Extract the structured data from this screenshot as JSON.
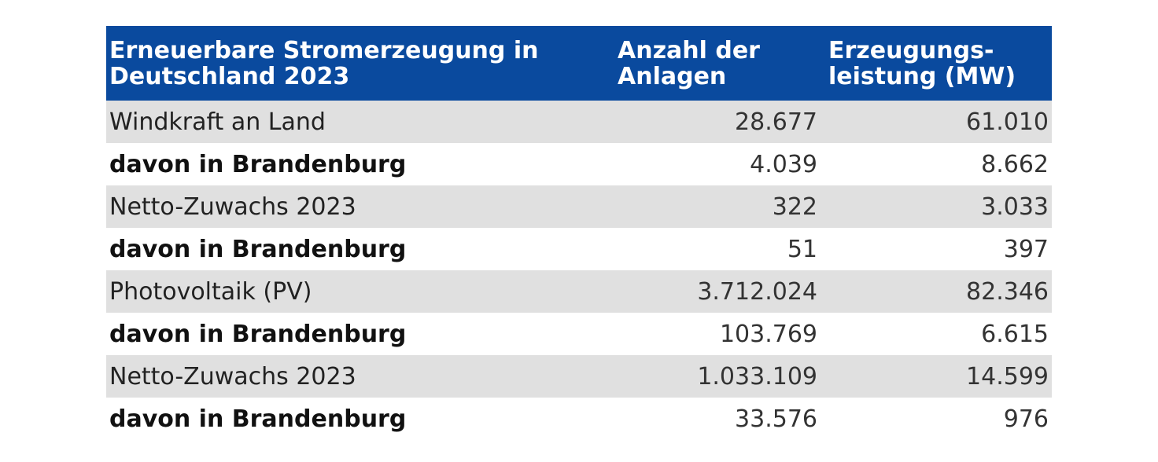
{
  "table": {
    "headers": [
      "Erneuerbare Stromerzeugung in Deutschland 2023",
      "Anzahl der Anlagen",
      "Erzeugungs-leistung (MW)"
    ],
    "rows": [
      {
        "label": "Windkraft an Land",
        "anlagen": "28.677",
        "leistung": "61.010"
      },
      {
        "label": "davon in Brandenburg",
        "anlagen": "4.039",
        "leistung": "8.662"
      },
      {
        "label": "Netto-Zuwachs 2023",
        "anlagen": "322",
        "leistung": "3.033"
      },
      {
        "label": "davon in Brandenburg",
        "anlagen": "51",
        "leistung": "397"
      },
      {
        "label": "Photovoltaik (PV)",
        "anlagen": "3.712.024",
        "leistung": "82.346"
      },
      {
        "label": "davon in Brandenburg",
        "anlagen": "103.769",
        "leistung": "6.615"
      },
      {
        "label": "Netto-Zuwachs 2023",
        "anlagen": "1.033.109",
        "leistung": "14.599"
      },
      {
        "label": "davon in Brandenburg",
        "anlagen": "33.576",
        "leistung": "976"
      }
    ]
  },
  "colors": {
    "header_bg": "#0a4a9e",
    "header_text": "#ffffff",
    "shaded_row": "#e0e0e0"
  }
}
